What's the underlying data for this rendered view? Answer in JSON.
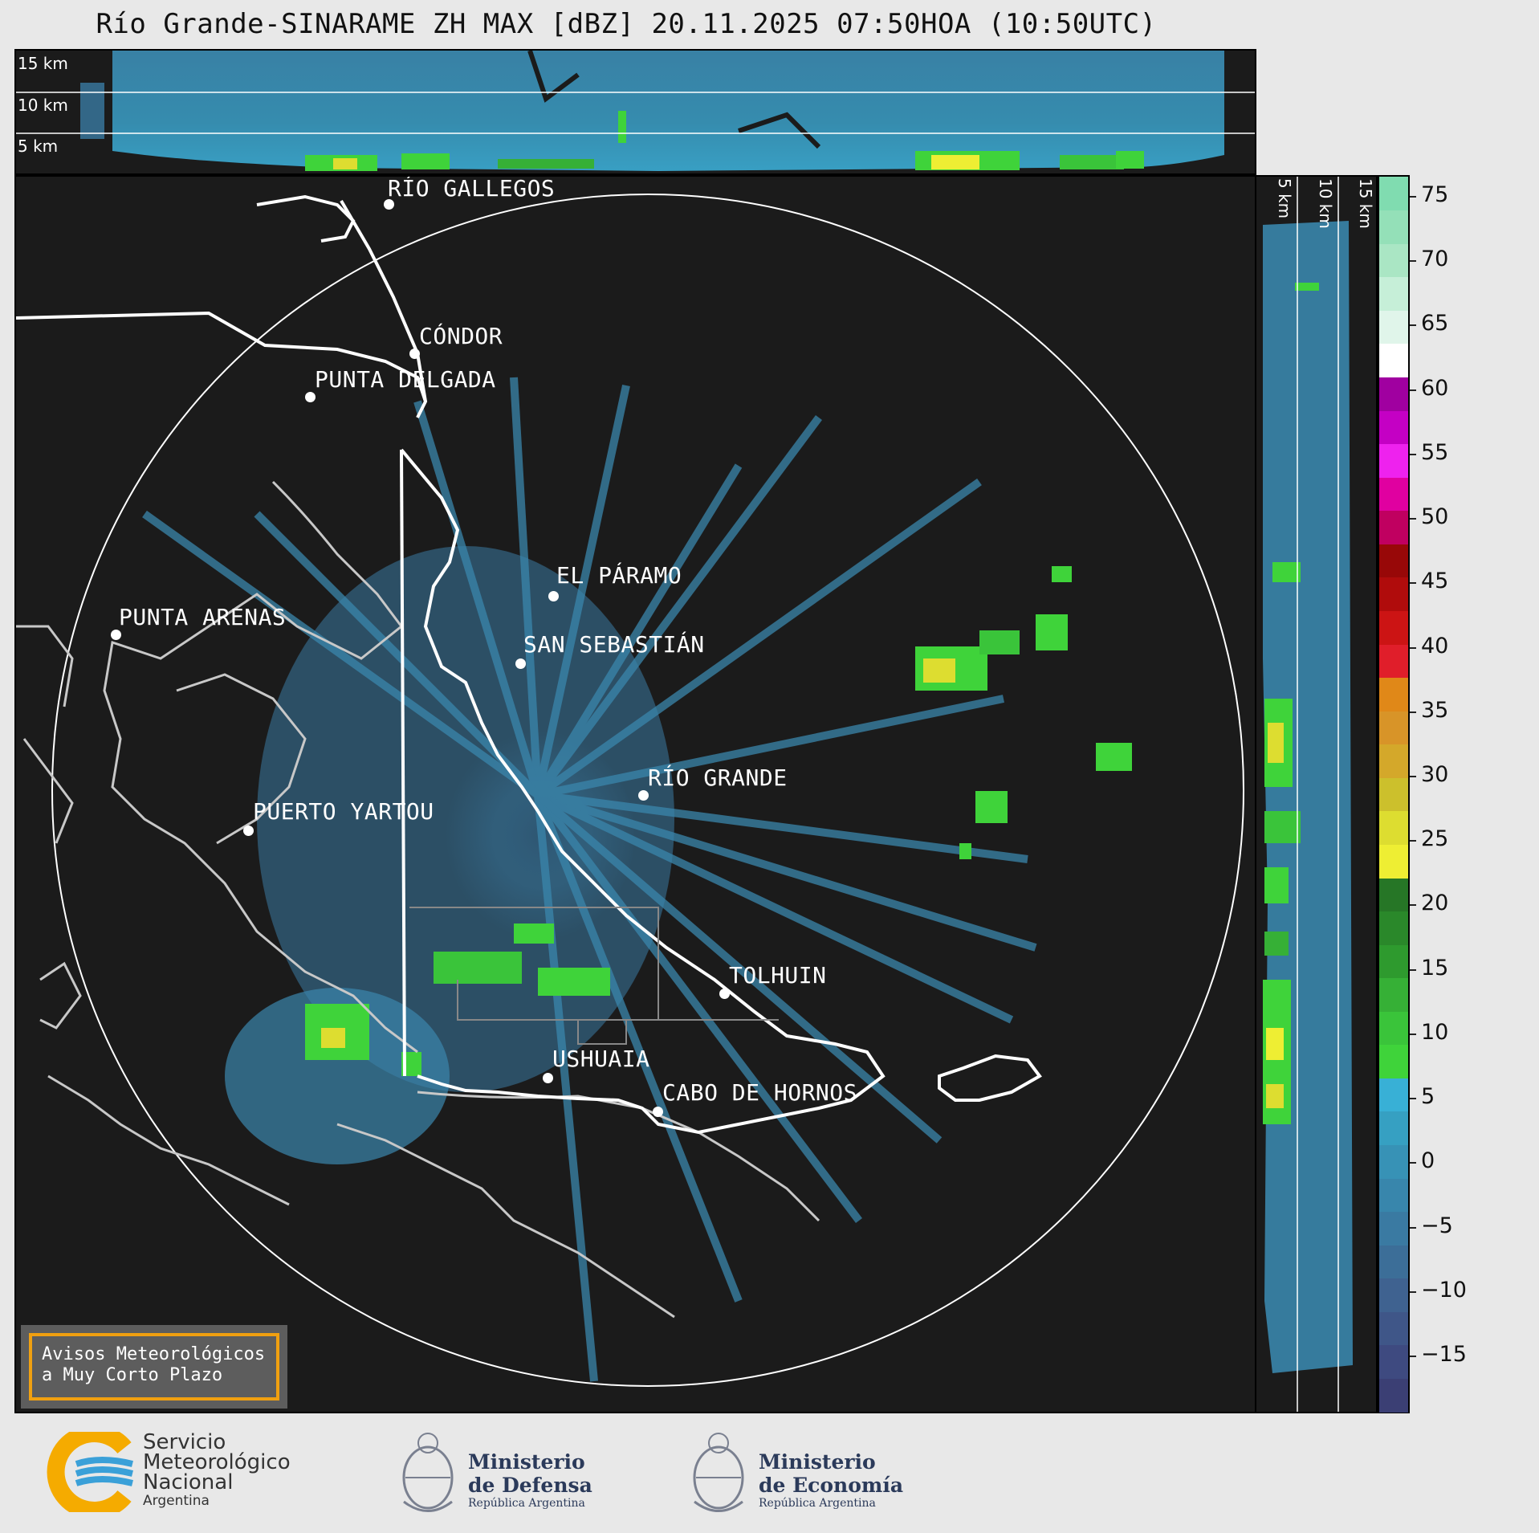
{
  "title": "Río Grande-SINARAME ZH MAX [dBZ] 20.11.2025 07:50HOA (10:50UTC)",
  "top_panel": {
    "height_labels": [
      "15 km",
      "10 km",
      "5 km"
    ]
  },
  "side_panel": {
    "height_labels": [
      "5 km",
      "10 km",
      "15 km"
    ]
  },
  "map": {
    "cities": [
      {
        "name": "RÍO GALLEGOS"
      },
      {
        "name": "CÓNDOR"
      },
      {
        "name": "PUNTA DELGADA"
      },
      {
        "name": "EL PÁRAMO"
      },
      {
        "name": "SAN SEBASTIÁN"
      },
      {
        "name": "PUNTA ARENAS"
      },
      {
        "name": "RÍO GRANDE"
      },
      {
        "name": "PUERTO YARTOU"
      },
      {
        "name": "TOLHUIN"
      },
      {
        "name": "USHUAIA"
      },
      {
        "name": "CABO DE HORNOS"
      }
    ],
    "warning_box": {
      "line1": "Avisos Meteorológicos",
      "line2": "a Muy Corto Plazo"
    }
  },
  "colorbar": {
    "unit": "dBZ",
    "ticks": [
      "75",
      "70",
      "65",
      "60",
      "55",
      "50",
      "45",
      "40",
      "35",
      "30",
      "25",
      "20",
      "15",
      "10",
      "5",
      "0",
      "−5",
      "−10",
      "−15"
    ],
    "colors": [
      "#3b3f74",
      "#3e4a80",
      "#3f5688",
      "#3f6290",
      "#3c6e98",
      "#3a7aa2",
      "#3886ac",
      "#3792b6",
      "#36a0c2",
      "#38b0d6",
      "#3fd33a",
      "#3ac43a",
      "#36b036",
      "#2e9a2e",
      "#2a882a",
      "#267626",
      "#eeee33",
      "#dddd30",
      "#ccc02c",
      "#d4a82a",
      "#d89428",
      "#e08818",
      "#e01e2a",
      "#cc1414",
      "#b00c0c",
      "#980808",
      "#c00060",
      "#e000a0",
      "#ee22ee",
      "#c400c4",
      "#a000a0",
      "#ffffff",
      "#e0f5ea",
      "#c6efd8",
      "#aae6c4",
      "#94e0b8",
      "#80dcb0"
    ]
  },
  "logos": {
    "smn": {
      "line1": "Servicio",
      "line2": "Meteorológico",
      "line3": "Nacional",
      "line4": "Argentina"
    },
    "defensa": {
      "line1": "Ministerio",
      "line2": "de Defensa",
      "line3": "República Argentina"
    },
    "economia": {
      "line1": "Ministerio",
      "line2": "de Economía",
      "line3": "República Argentina"
    }
  }
}
